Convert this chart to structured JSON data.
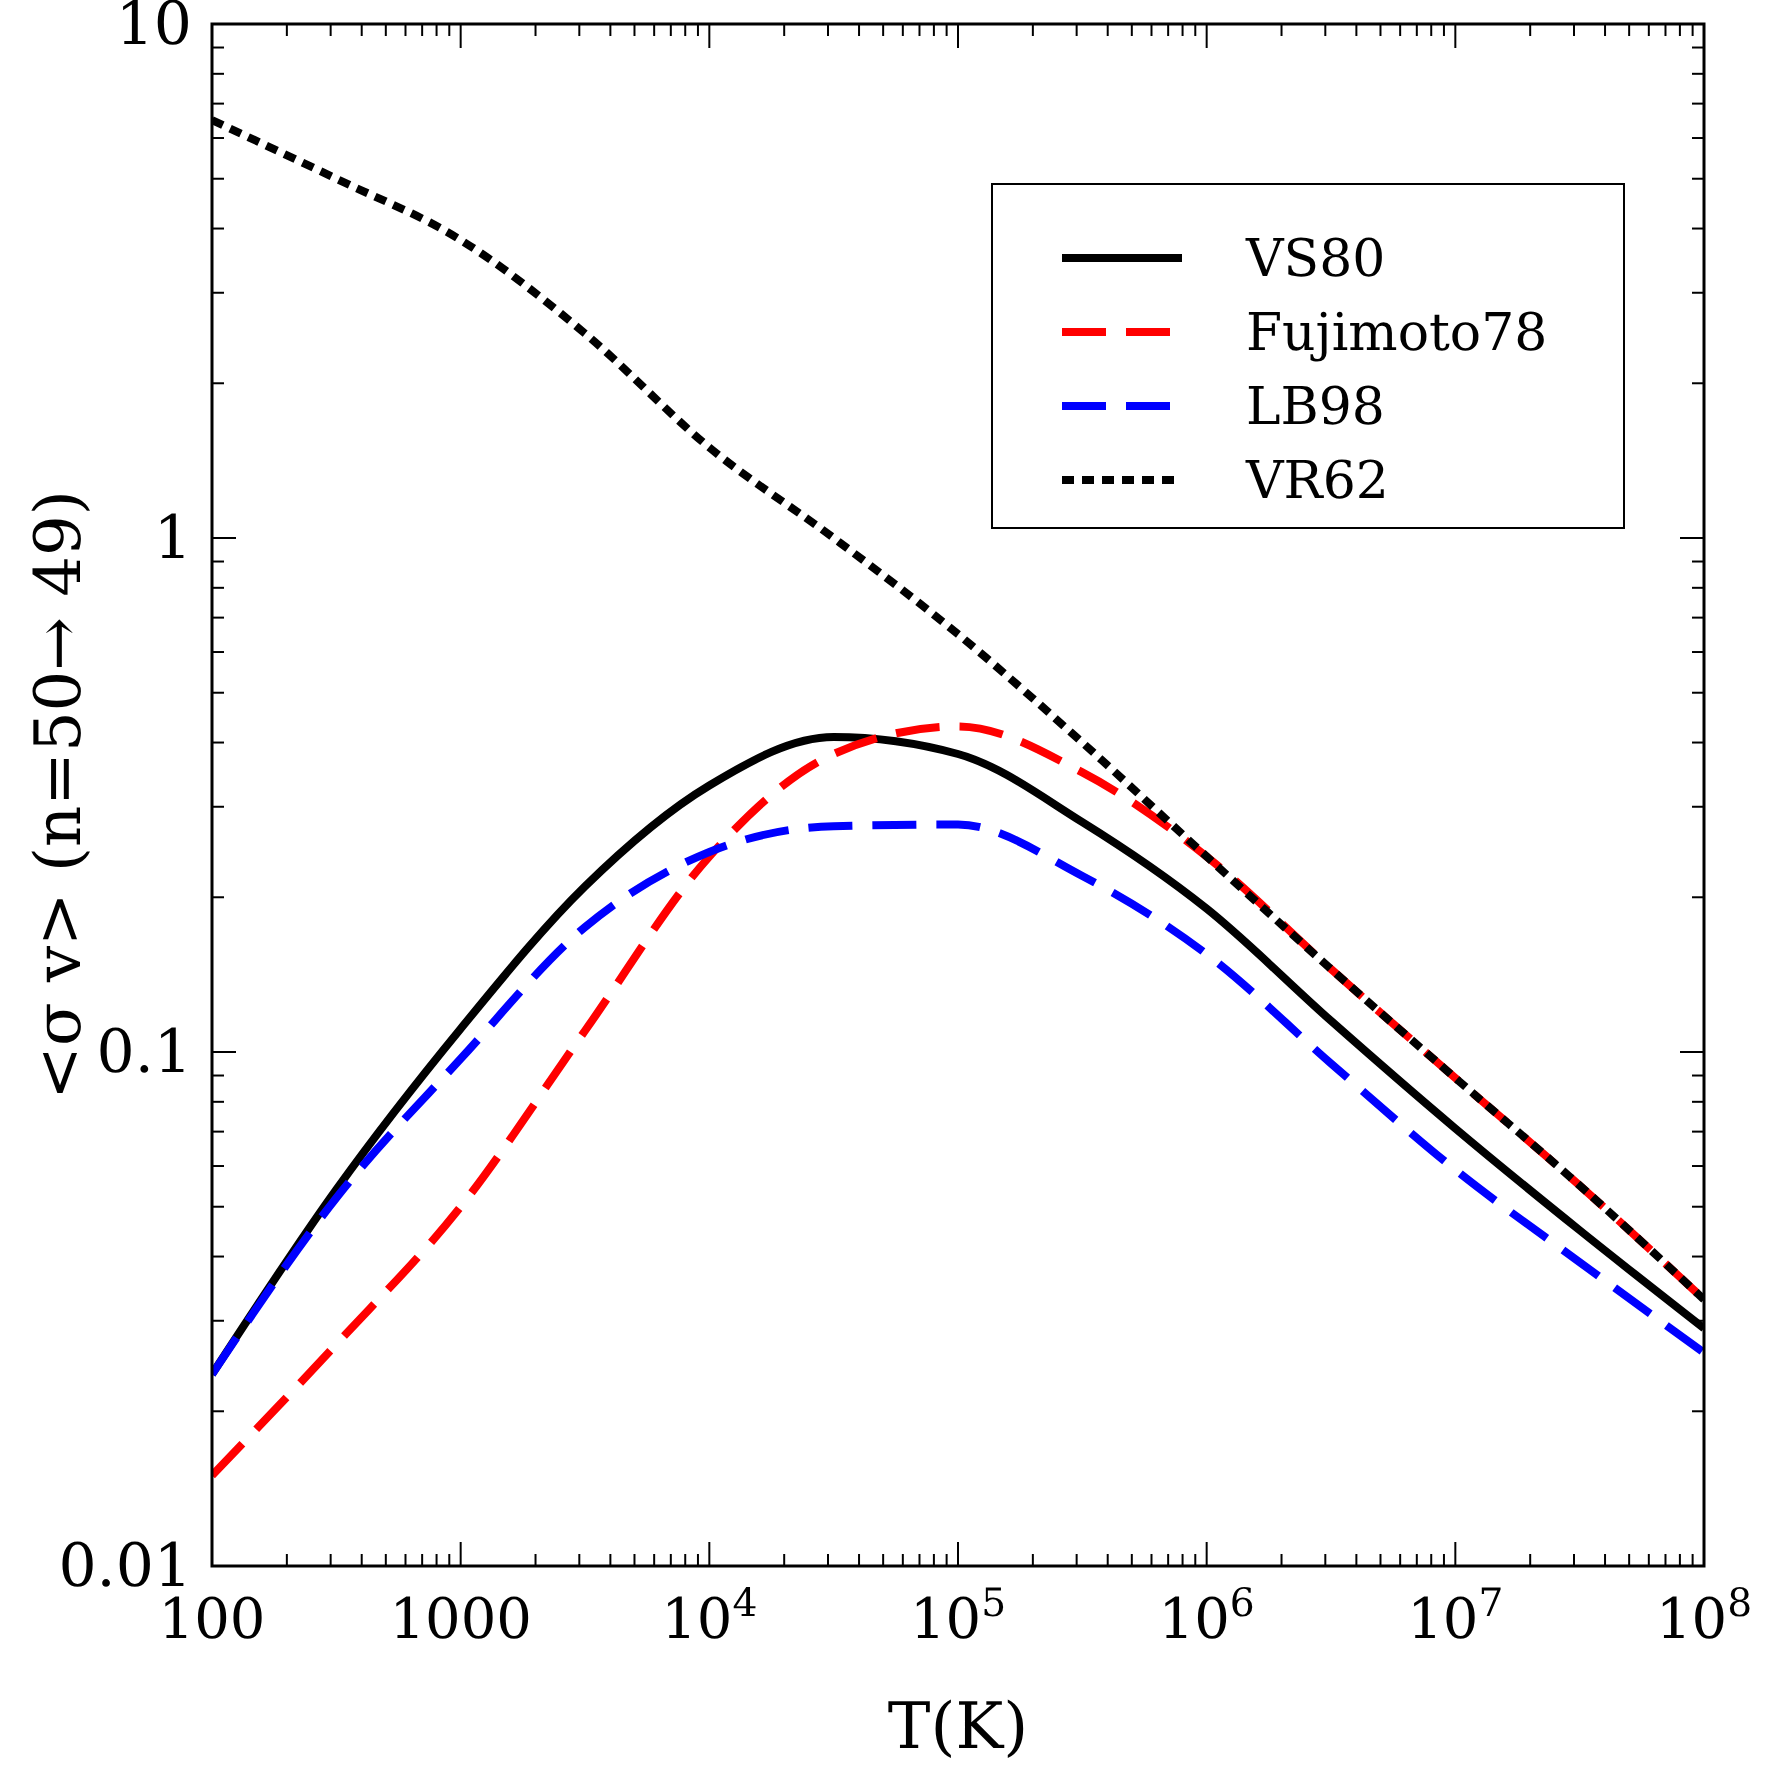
{
  "chart_data": {
    "type": "line",
    "xlabel": "T(K)",
    "ylabel": "<σ v> (n=50→ 49)",
    "log": "xy",
    "legend": "top right",
    "xlim": [
      100,
      100000000
    ],
    "ylim": [
      0.01,
      10
    ],
    "xticks": [
      {
        "value": 100,
        "label": "100"
      },
      {
        "value": 200,
        "label": null
      },
      {
        "value": 300,
        "label": null
      },
      {
        "value": 400,
        "label": null
      },
      {
        "value": 500,
        "label": null
      },
      {
        "value": 600,
        "label": null
      },
      {
        "value": 700,
        "label": null
      },
      {
        "value": 800,
        "label": null
      },
      {
        "value": 900,
        "label": null
      },
      {
        "value": 1000,
        "label": "1000"
      },
      {
        "value": 2000,
        "label": null
      },
      {
        "value": 3000,
        "label": null
      },
      {
        "value": 4000,
        "label": null
      },
      {
        "value": 5000,
        "label": null
      },
      {
        "value": 6000,
        "label": null
      },
      {
        "value": 7000,
        "label": null
      },
      {
        "value": 8000,
        "label": null
      },
      {
        "value": 9000,
        "label": null
      },
      {
        "value": 10000,
        "label": "10$^{4}$"
      },
      {
        "value": 20000,
        "label": null
      },
      {
        "value": 30000,
        "label": null
      },
      {
        "value": 40000,
        "label": null
      },
      {
        "value": 50000,
        "label": null
      },
      {
        "value": 60000,
        "label": null
      },
      {
        "value": 70000,
        "label": null
      },
      {
        "value": 80000,
        "label": null
      },
      {
        "value": 90000,
        "label": null
      },
      {
        "value": 100000,
        "label": "10$^{5}$"
      },
      {
        "value": 200000,
        "label": null
      },
      {
        "value": 300000,
        "label": null
      },
      {
        "value": 400000,
        "label": null
      },
      {
        "value": 500000,
        "label": null
      },
      {
        "value": 600000,
        "label": null
      },
      {
        "value": 700000,
        "label": null
      },
      {
        "value": 800000,
        "label": null
      },
      {
        "value": 900000,
        "label": null
      },
      {
        "value": 1000000,
        "label": "10$^{6}$"
      },
      {
        "value": 2000000,
        "label": null
      },
      {
        "value": 3000000,
        "label": null
      },
      {
        "value": 4000000,
        "label": null
      },
      {
        "value": 5000000,
        "label": null
      },
      {
        "value": 6000000,
        "label": null
      },
      {
        "value": 7000000,
        "label": null
      },
      {
        "value": 8000000,
        "label": null
      },
      {
        "value": 9000000,
        "label": null
      },
      {
        "value": 10000000,
        "label": "10$^{7}$"
      },
      {
        "value": 20000000,
        "label": null
      },
      {
        "value": 30000000,
        "label": null
      },
      {
        "value": 40000000,
        "label": null
      },
      {
        "value": 50000000,
        "label": null
      },
      {
        "value": 60000000,
        "label": null
      },
      {
        "value": 70000000,
        "label": null
      },
      {
        "value": 80000000,
        "label": null
      },
      {
        "value": 90000000,
        "label": null
      },
      {
        "value": 100000000,
        "label": "10$^{8}$"
      }
    ],
    "yticks": [
      {
        "value": 0.01,
        "label": "0.01"
      },
      {
        "value": 0.02,
        "label": null
      },
      {
        "value": 0.03,
        "label": null
      },
      {
        "value": 0.04,
        "label": null
      },
      {
        "value": 0.05,
        "label": null
      },
      {
        "value": 0.06,
        "label": null
      },
      {
        "value": 0.07,
        "label": null
      },
      {
        "value": 0.08,
        "label": null
      },
      {
        "value": 0.09,
        "label": null
      },
      {
        "value": 0.1,
        "label": "0.1"
      },
      {
        "value": 0.2,
        "label": null
      },
      {
        "value": 0.3,
        "label": null
      },
      {
        "value": 0.4,
        "label": null
      },
      {
        "value": 0.5,
        "label": null
      },
      {
        "value": 0.6,
        "label": null
      },
      {
        "value": 0.7,
        "label": null
      },
      {
        "value": 0.8,
        "label": null
      },
      {
        "value": 0.9,
        "label": null
      },
      {
        "value": 1,
        "label": "1"
      },
      {
        "value": 2,
        "label": null
      },
      {
        "value": 3,
        "label": null
      },
      {
        "value": 4,
        "label": null
      },
      {
        "value": 5,
        "label": null
      },
      {
        "value": 6,
        "label": null
      },
      {
        "value": 7,
        "label": null
      },
      {
        "value": 8,
        "label": null
      },
      {
        "value": 9,
        "label": null
      },
      {
        "value": 10,
        "label": "10"
      }
    ],
    "x": [
      100,
      316,
      1000,
      3162,
      10000,
      31623,
      100000,
      316228,
      1000000,
      3162278,
      10000000,
      31622777,
      100000000
    ],
    "series": [
      {
        "name": "VS80",
        "color": "#000000",
        "line_style": "solid",
        "values": [
          0.0236,
          0.054,
          0.111,
          0.21,
          0.33,
          0.41,
          0.38,
          0.28,
          0.19,
          0.115,
          0.071,
          0.045,
          0.029
        ]
      },
      {
        "name": "Fujimoto78",
        "color": "#ff0000",
        "line_style": "dashed",
        "values": [
          0.015,
          0.027,
          0.05,
          0.11,
          0.24,
          0.38,
          0.43,
          0.35,
          0.24,
          0.145,
          0.089,
          0.055,
          0.033
        ]
      },
      {
        "name": "LB98",
        "color": "#0000ff",
        "line_style": "dashed",
        "values": [
          0.0236,
          0.052,
          0.097,
          0.175,
          0.245,
          0.275,
          0.277,
          0.22,
          0.155,
          0.095,
          0.059,
          0.039,
          0.026
        ]
      },
      {
        "name": "VR62",
        "color": "#000000",
        "line_style": "dotted",
        "values": [
          6.5,
          5.0,
          3.8,
          2.5,
          1.5,
          1.0,
          0.65,
          0.4,
          0.24,
          0.145,
          0.089,
          0.055,
          0.033
        ]
      }
    ]
  }
}
